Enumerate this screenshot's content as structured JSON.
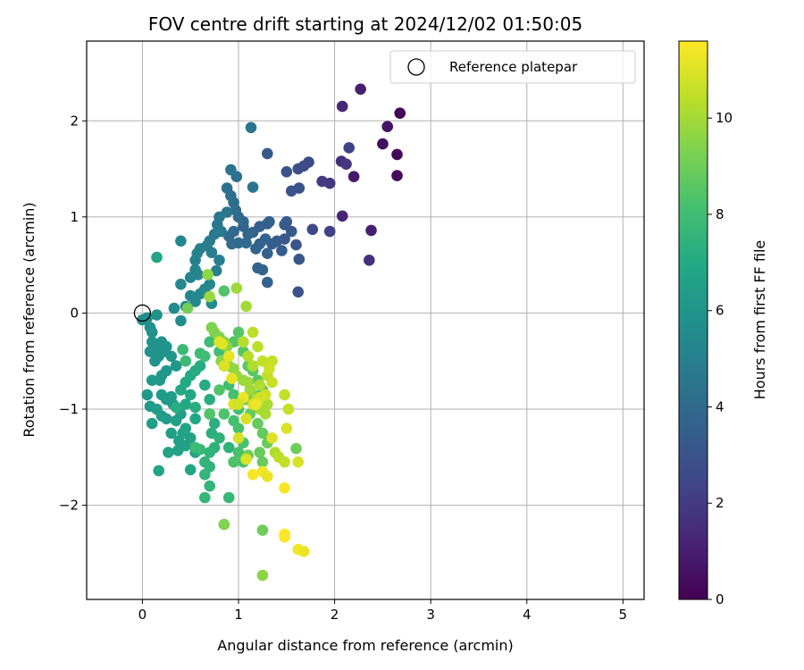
{
  "chart_data": {
    "type": "scatter",
    "title": "FOV centre drift starting at 2024/12/02 01:50:05",
    "xlabel": "Angular distance from reference (arcmin)",
    "ylabel": "Rotation from reference (arcmin)",
    "xlim": [
      -0.58,
      5.22
    ],
    "ylim": [
      -2.98,
      2.83
    ],
    "xticks": [
      0,
      1,
      2,
      3,
      4,
      5
    ],
    "yticks": [
      -2,
      -1,
      0,
      1,
      2
    ],
    "grid": true,
    "legend": {
      "placement": "top-right",
      "entries": [
        "Reference platepar"
      ]
    },
    "reference_point": {
      "x": 0,
      "y": 0,
      "label": "Reference platepar"
    },
    "colorbar": {
      "label": "Hours from first FF file",
      "min": 0,
      "max": 11.6,
      "ticks": [
        0,
        2,
        4,
        6,
        8,
        10
      ],
      "colormap": "viridis"
    },
    "points": [
      [
        2.68,
        2.08,
        0.1
      ],
      [
        2.65,
        1.65,
        0.2
      ],
      [
        2.65,
        1.43,
        0.3
      ],
      [
        2.5,
        1.76,
        0.4
      ],
      [
        2.55,
        1.94,
        0.6
      ],
      [
        2.27,
        2.33,
        1.0
      ],
      [
        2.08,
        2.15,
        1.2
      ],
      [
        2.2,
        1.42,
        0.8
      ],
      [
        2.38,
        0.86,
        1.0
      ],
      [
        2.36,
        0.55,
        1.6
      ],
      [
        2.08,
        1.01,
        1.2
      ],
      [
        2.07,
        1.58,
        1.5
      ],
      [
        2.12,
        1.55,
        1.8
      ],
      [
        1.95,
        1.35,
        1.8
      ],
      [
        1.87,
        1.37,
        2.0
      ],
      [
        1.95,
        0.85,
        2.2
      ],
      [
        1.77,
        0.87,
        2.5
      ],
      [
        2.15,
        1.72,
        2.3
      ],
      [
        1.73,
        1.57,
        2.6
      ],
      [
        1.68,
        1.53,
        2.7
      ],
      [
        1.62,
        1.5,
        2.8
      ],
      [
        1.63,
        1.3,
        2.9
      ],
      [
        1.55,
        1.27,
        3.0
      ],
      [
        1.5,
        1.47,
        3.0
      ],
      [
        1.3,
        1.66,
        3.2
      ],
      [
        1.62,
        0.22,
        3.0
      ],
      [
        1.63,
        0.56,
        3.1
      ],
      [
        1.6,
        0.71,
        3.0
      ],
      [
        1.55,
        0.85,
        3.2
      ],
      [
        1.48,
        0.77,
        3.2
      ],
      [
        1.48,
        0.92,
        3.3
      ],
      [
        1.5,
        0.95,
        3.3
      ],
      [
        1.4,
        0.75,
        3.4
      ],
      [
        1.35,
        0.72,
        3.4
      ],
      [
        1.45,
        0.65,
        3.4
      ],
      [
        1.32,
        0.95,
        3.5
      ],
      [
        1.3,
        0.93,
        3.5
      ],
      [
        1.22,
        0.9,
        3.5
      ],
      [
        1.15,
        0.84,
        3.6
      ],
      [
        1.28,
        0.77,
        3.6
      ],
      [
        1.22,
        0.72,
        3.6
      ],
      [
        1.18,
        0.67,
        3.7
      ],
      [
        1.3,
        0.62,
        3.6
      ],
      [
        1.3,
        0.32,
        3.7
      ],
      [
        1.25,
        0.45,
        3.7
      ],
      [
        1.2,
        0.47,
        3.7
      ],
      [
        1.1,
        0.82,
        3.8
      ],
      [
        1.05,
        0.9,
        3.8
      ],
      [
        0.95,
        0.85,
        3.9
      ],
      [
        0.9,
        0.8,
        4.0
      ],
      [
        0.93,
        0.72,
        4.0
      ],
      [
        1.0,
        0.73,
        4.0
      ],
      [
        1.08,
        0.73,
        4.0
      ],
      [
        1.05,
        0.95,
        3.9
      ],
      [
        1.0,
        1.0,
        4.0
      ],
      [
        0.97,
        1.07,
        4.1
      ],
      [
        0.95,
        1.15,
        4.2
      ],
      [
        0.92,
        1.22,
        4.2
      ],
      [
        0.88,
        1.3,
        4.3
      ],
      [
        0.98,
        1.42,
        4.3
      ],
      [
        0.92,
        1.49,
        4.4
      ],
      [
        1.13,
        1.93,
        4.4
      ],
      [
        1.15,
        1.31,
        4.5
      ],
      [
        0.88,
        1.05,
        4.6
      ],
      [
        0.8,
        1.0,
        4.6
      ],
      [
        0.78,
        0.92,
        4.6
      ],
      [
        0.82,
        0.85,
        4.7
      ],
      [
        0.75,
        0.82,
        4.7
      ],
      [
        0.7,
        0.75,
        4.8
      ],
      [
        0.67,
        0.7,
        4.9
      ],
      [
        0.72,
        0.63,
        4.9
      ],
      [
        0.8,
        0.55,
        4.9
      ],
      [
        0.77,
        0.44,
        5.0
      ],
      [
        0.6,
        0.67,
        5.0
      ],
      [
        0.57,
        0.62,
        5.1
      ],
      [
        0.55,
        0.55,
        5.1
      ],
      [
        0.55,
        0.45,
        5.2
      ],
      [
        0.58,
        0.4,
        5.2
      ],
      [
        0.5,
        0.37,
        5.2
      ],
      [
        0.4,
        0.75,
        5.3
      ],
      [
        0.4,
        0.3,
        5.3
      ],
      [
        0.5,
        0.18,
        5.4
      ],
      [
        0.55,
        0.12,
        5.4
      ],
      [
        0.6,
        0.2,
        5.4
      ],
      [
        0.65,
        0.25,
        5.4
      ],
      [
        0.72,
        0.1,
        5.5
      ],
      [
        0.7,
        0.3,
        5.4
      ],
      [
        0.33,
        0.05,
        5.5
      ],
      [
        0.45,
        0.07,
        5.6
      ],
      [
        0.4,
        -0.08,
        5.6
      ],
      [
        0.0,
        -0.07,
        5.7
      ],
      [
        0.05,
        -0.05,
        5.7
      ],
      [
        0.08,
        -0.15,
        5.8
      ],
      [
        0.1,
        -0.2,
        5.8
      ],
      [
        0.15,
        -0.02,
        5.8
      ],
      [
        0.1,
        -0.3,
        5.9
      ],
      [
        0.08,
        -0.4,
        5.9
      ],
      [
        0.15,
        -0.35,
        5.9
      ],
      [
        0.2,
        -0.3,
        5.9
      ],
      [
        0.22,
        -0.4,
        6.0
      ],
      [
        0.17,
        -0.45,
        6.0
      ],
      [
        0.13,
        -0.5,
        6.0
      ],
      [
        0.25,
        -0.35,
        6.0
      ],
      [
        0.3,
        -0.45,
        6.1
      ],
      [
        0.35,
        -0.55,
        6.1
      ],
      [
        0.25,
        -0.6,
        6.1
      ],
      [
        0.2,
        -0.65,
        6.1
      ],
      [
        0.1,
        -0.7,
        6.2
      ],
      [
        0.18,
        -0.7,
        6.2
      ],
      [
        0.05,
        -0.85,
        6.2
      ],
      [
        0.2,
        -0.85,
        6.3
      ],
      [
        0.25,
        -0.9,
        6.3
      ],
      [
        0.3,
        -0.87,
        6.3
      ],
      [
        0.32,
        -0.95,
        6.3
      ],
      [
        0.08,
        -0.97,
        6.3
      ],
      [
        0.15,
        -1.0,
        6.4
      ],
      [
        0.2,
        -1.07,
        6.4
      ],
      [
        0.1,
        -1.15,
        6.4
      ],
      [
        0.25,
        -1.1,
        6.4
      ],
      [
        0.35,
        -1.12,
        6.5
      ],
      [
        0.4,
        -1.05,
        6.5
      ],
      [
        0.3,
        -1.25,
        6.5
      ],
      [
        0.38,
        -1.33,
        6.5
      ],
      [
        0.42,
        -1.25,
        6.6
      ],
      [
        0.45,
        -1.38,
        6.6
      ],
      [
        0.37,
        -1.43,
        6.6
      ],
      [
        0.5,
        -1.3,
        6.6
      ],
      [
        0.55,
        -1.45,
        6.7
      ],
      [
        0.27,
        -1.45,
        6.7
      ],
      [
        0.17,
        -1.64,
        6.8
      ],
      [
        0.5,
        -1.63,
        6.8
      ],
      [
        0.45,
        -1.2,
        6.8
      ],
      [
        0.55,
        -1.1,
        6.9
      ],
      [
        0.45,
        -0.95,
        6.9
      ],
      [
        0.5,
        -0.85,
        6.9
      ],
      [
        0.4,
        -0.8,
        7.0
      ],
      [
        0.45,
        -0.72,
        7.0
      ],
      [
        0.5,
        -0.65,
        7.0
      ],
      [
        0.55,
        -0.6,
        7.1
      ],
      [
        0.6,
        -0.55,
        7.1
      ],
      [
        0.65,
        -0.75,
        7.1
      ],
      [
        0.7,
        -0.9,
        7.2
      ],
      [
        0.55,
        -0.98,
        7.2
      ],
      [
        0.35,
        -0.98,
        7.2
      ],
      [
        0.7,
        -1.05,
        7.3
      ],
      [
        0.75,
        -1.15,
        7.3
      ],
      [
        0.72,
        -1.25,
        7.3
      ],
      [
        0.8,
        -1.3,
        7.4
      ],
      [
        0.9,
        -1.4,
        7.4
      ],
      [
        0.75,
        -1.4,
        7.4
      ],
      [
        0.7,
        -1.45,
        7.5
      ],
      [
        0.65,
        -1.55,
        7.5
      ],
      [
        0.7,
        -1.6,
        7.5
      ],
      [
        0.65,
        -1.68,
        7.6
      ],
      [
        0.7,
        -1.8,
        7.6
      ],
      [
        0.65,
        -1.92,
        7.6
      ],
      [
        0.9,
        -1.92,
        7.7
      ],
      [
        0.6,
        -1.42,
        7.7
      ],
      [
        0.55,
        -1.4,
        7.8
      ],
      [
        0.42,
        -0.38,
        7.8
      ],
      [
        0.45,
        -0.5,
        7.8
      ],
      [
        0.6,
        -0.42,
        7.9
      ],
      [
        0.65,
        -0.45,
        7.9
      ],
      [
        0.7,
        -0.3,
        7.9
      ],
      [
        0.8,
        -0.4,
        8.0
      ],
      [
        0.85,
        -0.55,
        8.0
      ],
      [
        0.9,
        -0.75,
        8.0
      ],
      [
        0.95,
        -0.85,
        8.1
      ],
      [
        1.0,
        -1.0,
        8.1
      ],
      [
        0.95,
        -1.12,
        8.1
      ],
      [
        1.0,
        -1.2,
        8.2
      ],
      [
        1.05,
        -1.35,
        8.2
      ],
      [
        1.0,
        -1.45,
        8.2
      ],
      [
        0.95,
        -1.55,
        8.3
      ],
      [
        1.05,
        -1.55,
        8.3
      ],
      [
        0.85,
        -1.05,
        8.3
      ],
      [
        0.7,
        -1.05,
        8.4
      ],
      [
        0.8,
        -0.8,
        8.4
      ],
      [
        0.9,
        -0.45,
        8.4
      ],
      [
        0.95,
        -0.3,
        8.5
      ],
      [
        1.0,
        -0.2,
        8.5
      ],
      [
        1.05,
        -0.4,
        8.5
      ],
      [
        1.1,
        -0.55,
        8.6
      ],
      [
        1.15,
        -0.6,
        8.6
      ],
      [
        1.2,
        -0.7,
        8.6
      ],
      [
        1.25,
        -0.8,
        8.7
      ],
      [
        1.15,
        -0.85,
        8.7
      ],
      [
        1.08,
        -0.9,
        8.7
      ],
      [
        1.12,
        -1.05,
        8.8
      ],
      [
        1.2,
        -1.15,
        8.8
      ],
      [
        1.25,
        -1.25,
        8.8
      ],
      [
        1.3,
        -1.35,
        8.9
      ],
      [
        1.22,
        -1.45,
        8.9
      ],
      [
        1.25,
        -1.55,
        8.9
      ],
      [
        1.1,
        -1.48,
        9.0
      ],
      [
        1.25,
        -2.26,
        9.0
      ],
      [
        1.6,
        -1.41,
        9.0
      ],
      [
        0.47,
        0.05,
        9.1
      ],
      [
        0.15,
        0.58,
        6.8
      ],
      [
        0.68,
        0.4,
        9.6
      ],
      [
        0.7,
        0.17,
        9.8
      ],
      [
        0.98,
        0.26,
        9.9
      ],
      [
        1.08,
        0.07,
        10.0
      ],
      [
        0.85,
        0.23,
        8.4
      ],
      [
        0.72,
        -0.15,
        9.3
      ],
      [
        0.75,
        -0.2,
        9.4
      ],
      [
        0.8,
        -0.25,
        9.4
      ],
      [
        0.85,
        -0.3,
        9.5
      ],
      [
        0.88,
        -0.35,
        9.6
      ],
      [
        0.82,
        -0.5,
        9.6
      ],
      [
        0.9,
        -0.55,
        9.7
      ],
      [
        0.95,
        -0.58,
        9.7
      ],
      [
        0.98,
        -0.65,
        9.8
      ],
      [
        1.05,
        -0.7,
        9.8
      ],
      [
        1.1,
        -0.72,
        9.9
      ],
      [
        1.12,
        -0.8,
        9.9
      ],
      [
        1.18,
        -0.9,
        10.0
      ],
      [
        1.22,
        -1.0,
        10.0
      ],
      [
        1.28,
        -1.05,
        10.1
      ],
      [
        1.3,
        -0.95,
        10.1
      ],
      [
        1.22,
        -0.75,
        10.2
      ],
      [
        1.15,
        -0.55,
        10.2
      ],
      [
        1.1,
        -0.45,
        10.3
      ],
      [
        1.05,
        -0.3,
        10.3
      ],
      [
        1.15,
        -0.2,
        10.4
      ],
      [
        1.2,
        -0.35,
        10.4
      ],
      [
        1.25,
        -0.5,
        10.5
      ],
      [
        1.3,
        -0.65,
        10.5
      ],
      [
        1.35,
        -0.72,
        10.6
      ],
      [
        1.35,
        -0.5,
        10.6
      ],
      [
        1.32,
        -0.58,
        10.7
      ],
      [
        1.28,
        -0.85,
        10.7
      ],
      [
        1.22,
        -0.88,
        10.8
      ],
      [
        1.15,
        -0.95,
        10.8
      ],
      [
        1.08,
        -1.1,
        10.9
      ],
      [
        1.0,
        -1.3,
        10.9
      ],
      [
        0.95,
        -0.95,
        11.0
      ],
      [
        0.85,
        -0.55,
        11.0
      ],
      [
        0.8,
        -0.3,
        11.1
      ],
      [
        0.83,
        -0.32,
        11.1
      ],
      [
        0.9,
        -0.45,
        11.2
      ],
      [
        0.93,
        -0.68,
        11.2
      ],
      [
        1.05,
        -0.88,
        11.3
      ],
      [
        1.18,
        -0.95,
        11.3
      ],
      [
        1.25,
        -1.65,
        11.4
      ],
      [
        1.35,
        -1.3,
        11.0
      ],
      [
        1.3,
        -1.7,
        11.2
      ],
      [
        1.5,
        -1.2,
        11.0
      ],
      [
        1.48,
        -0.85,
        10.5
      ],
      [
        1.52,
        -1.0,
        10.6
      ],
      [
        1.38,
        -1.45,
        10.2
      ],
      [
        1.42,
        -1.5,
        10.4
      ],
      [
        1.48,
        -1.55,
        10.5
      ],
      [
        1.62,
        -1.55,
        10.9
      ],
      [
        1.62,
        -2.46,
        11.4
      ],
      [
        1.68,
        -2.48,
        11.3
      ],
      [
        1.48,
        -2.33,
        11.5
      ],
      [
        1.48,
        -2.3,
        11.6
      ],
      [
        1.48,
        -1.82,
        11.5
      ],
      [
        1.15,
        -1.68,
        11.5
      ],
      [
        1.25,
        -2.73,
        9.6
      ],
      [
        0.85,
        -2.2,
        9.4
      ],
      [
        1.08,
        -1.52,
        11.0
      ],
      [
        1.0,
        -0.95,
        10.8
      ]
    ]
  }
}
